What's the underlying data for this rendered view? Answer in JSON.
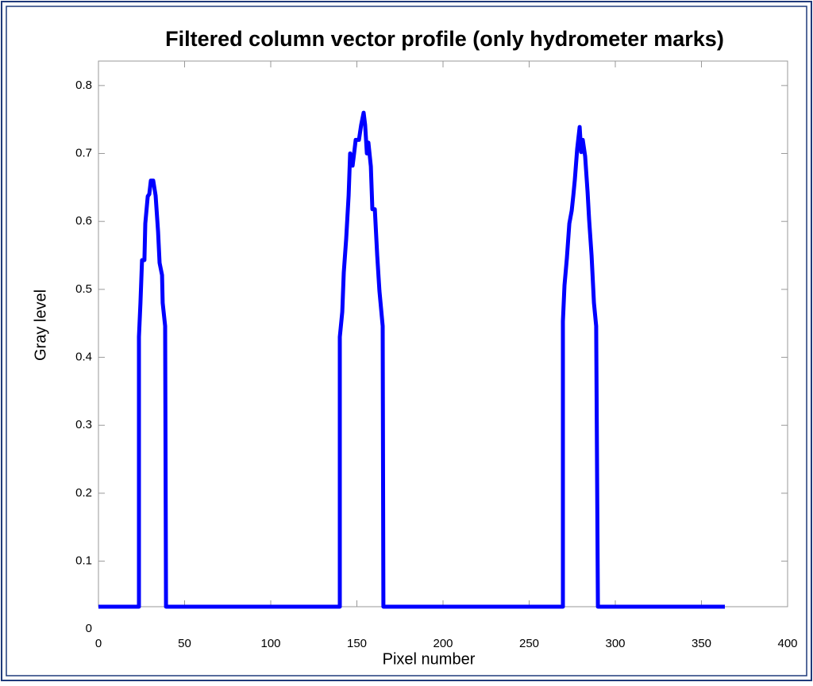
{
  "chart_data": {
    "type": "line",
    "title": "Filtered column vector profile (only hydrometer marks)",
    "xlabel": "Pixel number",
    "ylabel": "Gray level",
    "xlim": [
      0,
      400
    ],
    "xticks": [
      0,
      50,
      100,
      150,
      200,
      250,
      300,
      350,
      400
    ],
    "ylim": [
      0.033,
      0.836
    ],
    "yticks": [
      0,
      0.1,
      0.2,
      0.3,
      0.4,
      0.5,
      0.6,
      0.7,
      0.8
    ],
    "series": [
      {
        "name": "Gray level",
        "color": "#0000ff",
        "x": [
          0,
          23.5,
          23.5,
          24.4,
          25.3,
          26.7,
          27.2,
          28.6,
          29.5,
          30.4,
          31.8,
          33.2,
          34.6,
          35.5,
          36.9,
          37.3,
          38.7,
          39.2,
          140.1,
          140.1,
          141.5,
          142.4,
          143.8,
          145.2,
          146.1,
          147.5,
          148.4,
          149.3,
          151.2,
          152.5,
          153.9,
          154.8,
          155.8,
          156.7,
          158.1,
          159,
          160.4,
          161.8,
          163.1,
          165,
          165.4,
          269.6,
          269.6,
          270.5,
          271.9,
          273.3,
          274.7,
          275.6,
          276.5,
          277.9,
          279.3,
          280.2,
          281.1,
          282.5,
          283.9,
          284.8,
          286.2,
          287.6,
          288.9,
          289.9,
          363.6
        ],
        "values": [
          0.033,
          0.033,
          0.43,
          0.48,
          0.543,
          0.543,
          0.597,
          0.637,
          0.64,
          0.66,
          0.66,
          0.638,
          0.585,
          0.539,
          0.521,
          0.48,
          0.446,
          0.033,
          0.033,
          0.43,
          0.467,
          0.525,
          0.574,
          0.638,
          0.7,
          0.682,
          0.7,
          0.72,
          0.72,
          0.742,
          0.76,
          0.742,
          0.7,
          0.716,
          0.681,
          0.618,
          0.618,
          0.55,
          0.498,
          0.446,
          0.033,
          0.033,
          0.453,
          0.506,
          0.546,
          0.597,
          0.616,
          0.638,
          0.661,
          0.707,
          0.739,
          0.702,
          0.72,
          0.696,
          0.643,
          0.603,
          0.55,
          0.48,
          0.446,
          0.033,
          0.033
        ]
      }
    ]
  }
}
